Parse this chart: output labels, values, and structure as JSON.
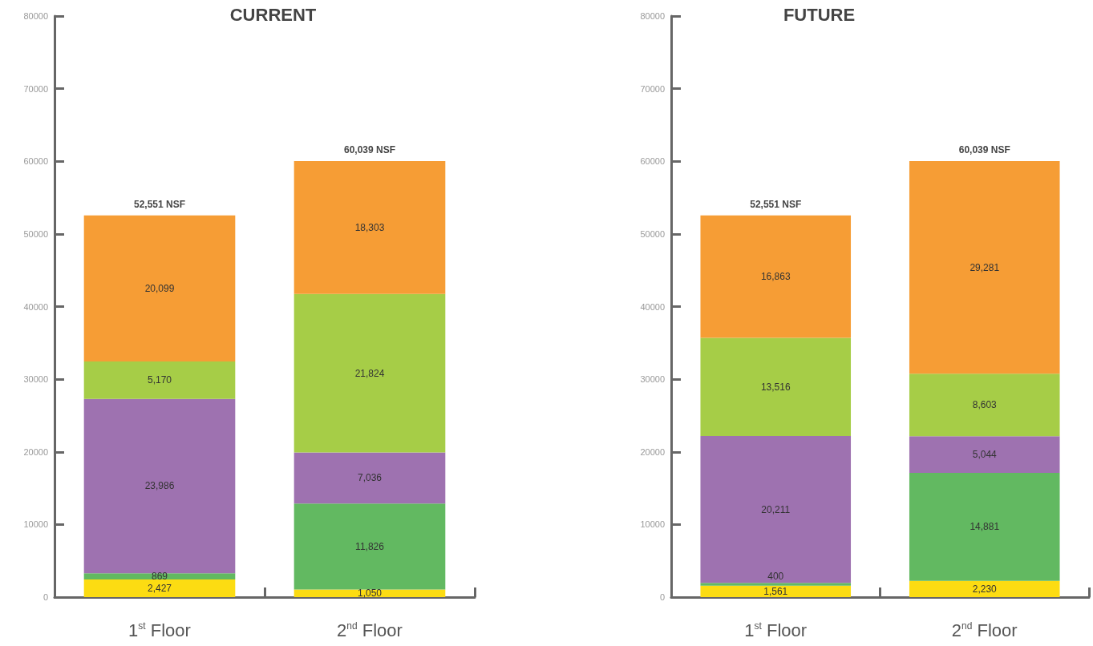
{
  "chart_data": [
    {
      "type": "bar",
      "title": "CURRENT",
      "categories": [
        "1$^{st}$ Floor",
        "2$^{nd}$ Floor"
      ],
      "stacked": true,
      "ylim": [
        0,
        80000
      ],
      "yticks": [
        0,
        10000,
        20000,
        30000,
        40000,
        50000,
        60000,
        70000,
        80000
      ],
      "totals": [
        "52,551 NSF",
        "60,039 NSF"
      ],
      "series": [
        {
          "color": "#fcdc12",
          "values": [
            2427,
            1050
          ],
          "value_labels": [
            "2,427",
            "1,050"
          ]
        },
        {
          "color": "#62b961",
          "values": [
            869,
            11826
          ],
          "value_labels": [
            "869",
            "11,826"
          ]
        },
        {
          "color": "#9e72b0",
          "values": [
            23986,
            7036
          ],
          "value_labels": [
            "23,986",
            "7,036"
          ]
        },
        {
          "color": "#a6cd47",
          "values": [
            5170,
            21824
          ],
          "value_labels": [
            "5,170",
            "21,824"
          ]
        },
        {
          "color": "#f69d35",
          "values": [
            20099,
            18303
          ],
          "value_labels": [
            "20,099",
            "18,303"
          ]
        }
      ]
    },
    {
      "type": "bar",
      "title": "FUTURE",
      "categories": [
        "1$^{st}$ Floor",
        "2$^{nd}$ Floor"
      ],
      "stacked": true,
      "ylim": [
        0,
        80000
      ],
      "yticks": [
        0,
        10000,
        20000,
        30000,
        40000,
        50000,
        60000,
        70000,
        80000
      ],
      "totals": [
        "52,551 NSF",
        "60,039 NSF"
      ],
      "series": [
        {
          "color": "#fcdc12",
          "values": [
            1561,
            2230
          ],
          "value_labels": [
            "1,561",
            "2,230"
          ]
        },
        {
          "color": "#62b961",
          "values": [
            400,
            14881
          ],
          "value_labels": [
            "400",
            "14,881"
          ]
        },
        {
          "color": "#9e72b0",
          "values": [
            20211,
            5044
          ],
          "value_labels": [
            "20,211",
            "5,044"
          ]
        },
        {
          "color": "#a6cd47",
          "values": [
            13516,
            8603
          ],
          "value_labels": [
            "13,516",
            "8,603"
          ]
        },
        {
          "color": "#f69d35",
          "values": [
            16863,
            29281
          ],
          "value_labels": [
            "16,863",
            "29,281"
          ]
        }
      ]
    }
  ]
}
